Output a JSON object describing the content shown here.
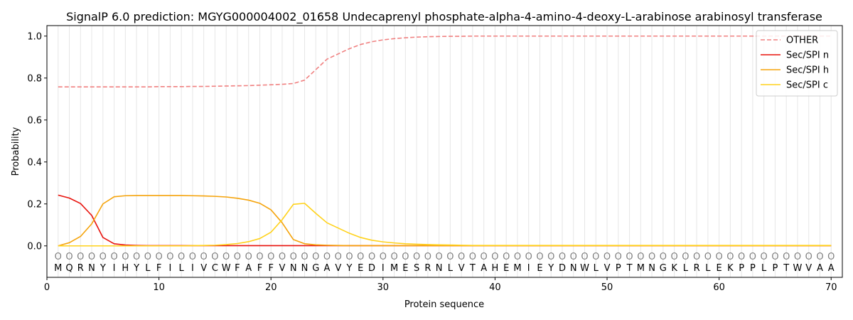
{
  "chart_data": {
    "type": "line",
    "title": "SignalP 6.0 prediction: MGYG000004002_01658 Undecaprenyl phosphate-alpha-4-amino-4-deoxy-L-arabinose arabinosyl transferase",
    "xlabel": "Protein sequence",
    "ylabel": "Probability",
    "xlim": [
      0,
      71
    ],
    "ylim": [
      -0.15,
      1.05
    ],
    "x_ticks": [
      0,
      10,
      20,
      30,
      40,
      50,
      60,
      70
    ],
    "y_ticks": [
      0.0,
      0.2,
      0.4,
      0.6,
      0.8,
      1.0
    ],
    "x_tick_labels": [
      "0",
      "10",
      "20",
      "30",
      "40",
      "50",
      "60",
      "70"
    ],
    "y_tick_labels": [
      "0.0",
      "0.2",
      "0.4",
      "0.6",
      "0.8",
      "1.0"
    ],
    "grid": "vertical lines at each residue",
    "legend_position": "top-right",
    "sequence": [
      "M",
      "Q",
      "R",
      "N",
      "Y",
      "I",
      "H",
      "Y",
      "L",
      "F",
      "I",
      "L",
      "I",
      "V",
      "C",
      "W",
      "F",
      "A",
      "F",
      "F",
      "V",
      "N",
      "N",
      "G",
      "A",
      "V",
      "Y",
      "E",
      "D",
      "I",
      "M",
      "E",
      "S",
      "R",
      "N",
      "L",
      "V",
      "T",
      "A",
      "H",
      "E",
      "M",
      "I",
      "E",
      "Y",
      "D",
      "N",
      "W",
      "L",
      "V",
      "P",
      "T",
      "M",
      "N",
      "G",
      "K",
      "L",
      "R",
      "L",
      "E",
      "K",
      "P",
      "P",
      "L",
      "P",
      "T",
      "W",
      "V",
      "A",
      "A"
    ],
    "position_marker": "O",
    "series": [
      {
        "name": "OTHER",
        "color": "#f08080",
        "dashed": true,
        "values": [
          0.758,
          0.758,
          0.758,
          0.758,
          0.758,
          0.758,
          0.758,
          0.758,
          0.758,
          0.759,
          0.759,
          0.759,
          0.76,
          0.76,
          0.761,
          0.762,
          0.763,
          0.764,
          0.766,
          0.768,
          0.77,
          0.774,
          0.79,
          0.84,
          0.89,
          0.915,
          0.94,
          0.96,
          0.973,
          0.982,
          0.988,
          0.992,
          0.995,
          0.997,
          0.998,
          0.999,
          0.999,
          1.0,
          1.0,
          1.0,
          1.0,
          1.0,
          1.0,
          1.0,
          1.0,
          1.0,
          1.0,
          1.0,
          1.0,
          1.0,
          1.0,
          1.0,
          1.0,
          1.0,
          1.0,
          1.0,
          1.0,
          1.0,
          1.0,
          1.0,
          1.0,
          1.0,
          1.0,
          1.0,
          1.0,
          1.0,
          1.0,
          1.0,
          1.0,
          1.0
        ]
      },
      {
        "name": "Sec/SPI n",
        "color": "#e8120c",
        "dashed": false,
        "values": [
          0.242,
          0.228,
          0.202,
          0.145,
          0.04,
          0.01,
          0.004,
          0.002,
          0.001,
          0.001,
          0.001,
          0.001,
          0.001,
          0.001,
          0.001,
          0.001,
          0.001,
          0.001,
          0.001,
          0.001,
          0.001,
          0.001,
          0.001,
          0.001,
          0.001,
          0.001,
          0.001,
          0.001,
          0.001,
          0.001,
          0.001,
          0.001,
          0.001,
          0.001,
          0.001,
          0.001,
          0.001,
          0.001,
          0.001,
          0.001,
          0.001,
          0.001,
          0.001,
          0.001,
          0.001,
          0.001,
          0.001,
          0.001,
          0.001,
          0.001,
          0.001,
          0.001,
          0.001,
          0.001,
          0.001,
          0.001,
          0.001,
          0.001,
          0.001,
          0.001,
          0.001,
          0.001,
          0.001,
          0.001,
          0.001,
          0.001,
          0.001,
          0.001,
          0.001,
          0.001
        ]
      },
      {
        "name": "Sec/SPI h",
        "color": "#f5a30a",
        "dashed": false,
        "values": [
          0.0,
          0.015,
          0.045,
          0.105,
          0.2,
          0.234,
          0.239,
          0.24,
          0.24,
          0.24,
          0.24,
          0.24,
          0.239,
          0.238,
          0.236,
          0.233,
          0.227,
          0.218,
          0.203,
          0.172,
          0.11,
          0.03,
          0.01,
          0.005,
          0.003,
          0.002,
          0.001,
          0.001,
          0.001,
          0.001,
          0.001,
          0.001,
          0.001,
          0.001,
          0.001,
          0.001,
          0.001,
          0.001,
          0.001,
          0.001,
          0.001,
          0.001,
          0.001,
          0.001,
          0.001,
          0.001,
          0.001,
          0.001,
          0.001,
          0.001,
          0.001,
          0.001,
          0.001,
          0.001,
          0.001,
          0.001,
          0.001,
          0.001,
          0.001,
          0.001,
          0.001,
          0.001,
          0.001,
          0.001,
          0.001,
          0.001,
          0.001,
          0.001,
          0.001,
          0.001
        ]
      },
      {
        "name": "Sec/SPI c",
        "color": "#ffd21a",
        "dashed": false,
        "values": [
          0.0,
          0.0,
          0.0,
          0.0,
          0.0,
          0.0,
          0.0,
          0.0,
          0.0,
          0.0,
          0.0,
          0.0,
          0.001,
          0.002,
          0.003,
          0.006,
          0.011,
          0.02,
          0.035,
          0.065,
          0.125,
          0.198,
          0.203,
          0.155,
          0.11,
          0.085,
          0.06,
          0.04,
          0.027,
          0.019,
          0.014,
          0.01,
          0.008,
          0.006,
          0.005,
          0.004,
          0.003,
          0.002,
          0.002,
          0.002,
          0.002,
          0.002,
          0.002,
          0.002,
          0.002,
          0.002,
          0.002,
          0.002,
          0.002,
          0.002,
          0.002,
          0.002,
          0.002,
          0.002,
          0.002,
          0.002,
          0.002,
          0.002,
          0.002,
          0.002,
          0.002,
          0.002,
          0.002,
          0.002,
          0.002,
          0.002,
          0.002,
          0.002,
          0.002,
          0.002
        ]
      }
    ]
  }
}
